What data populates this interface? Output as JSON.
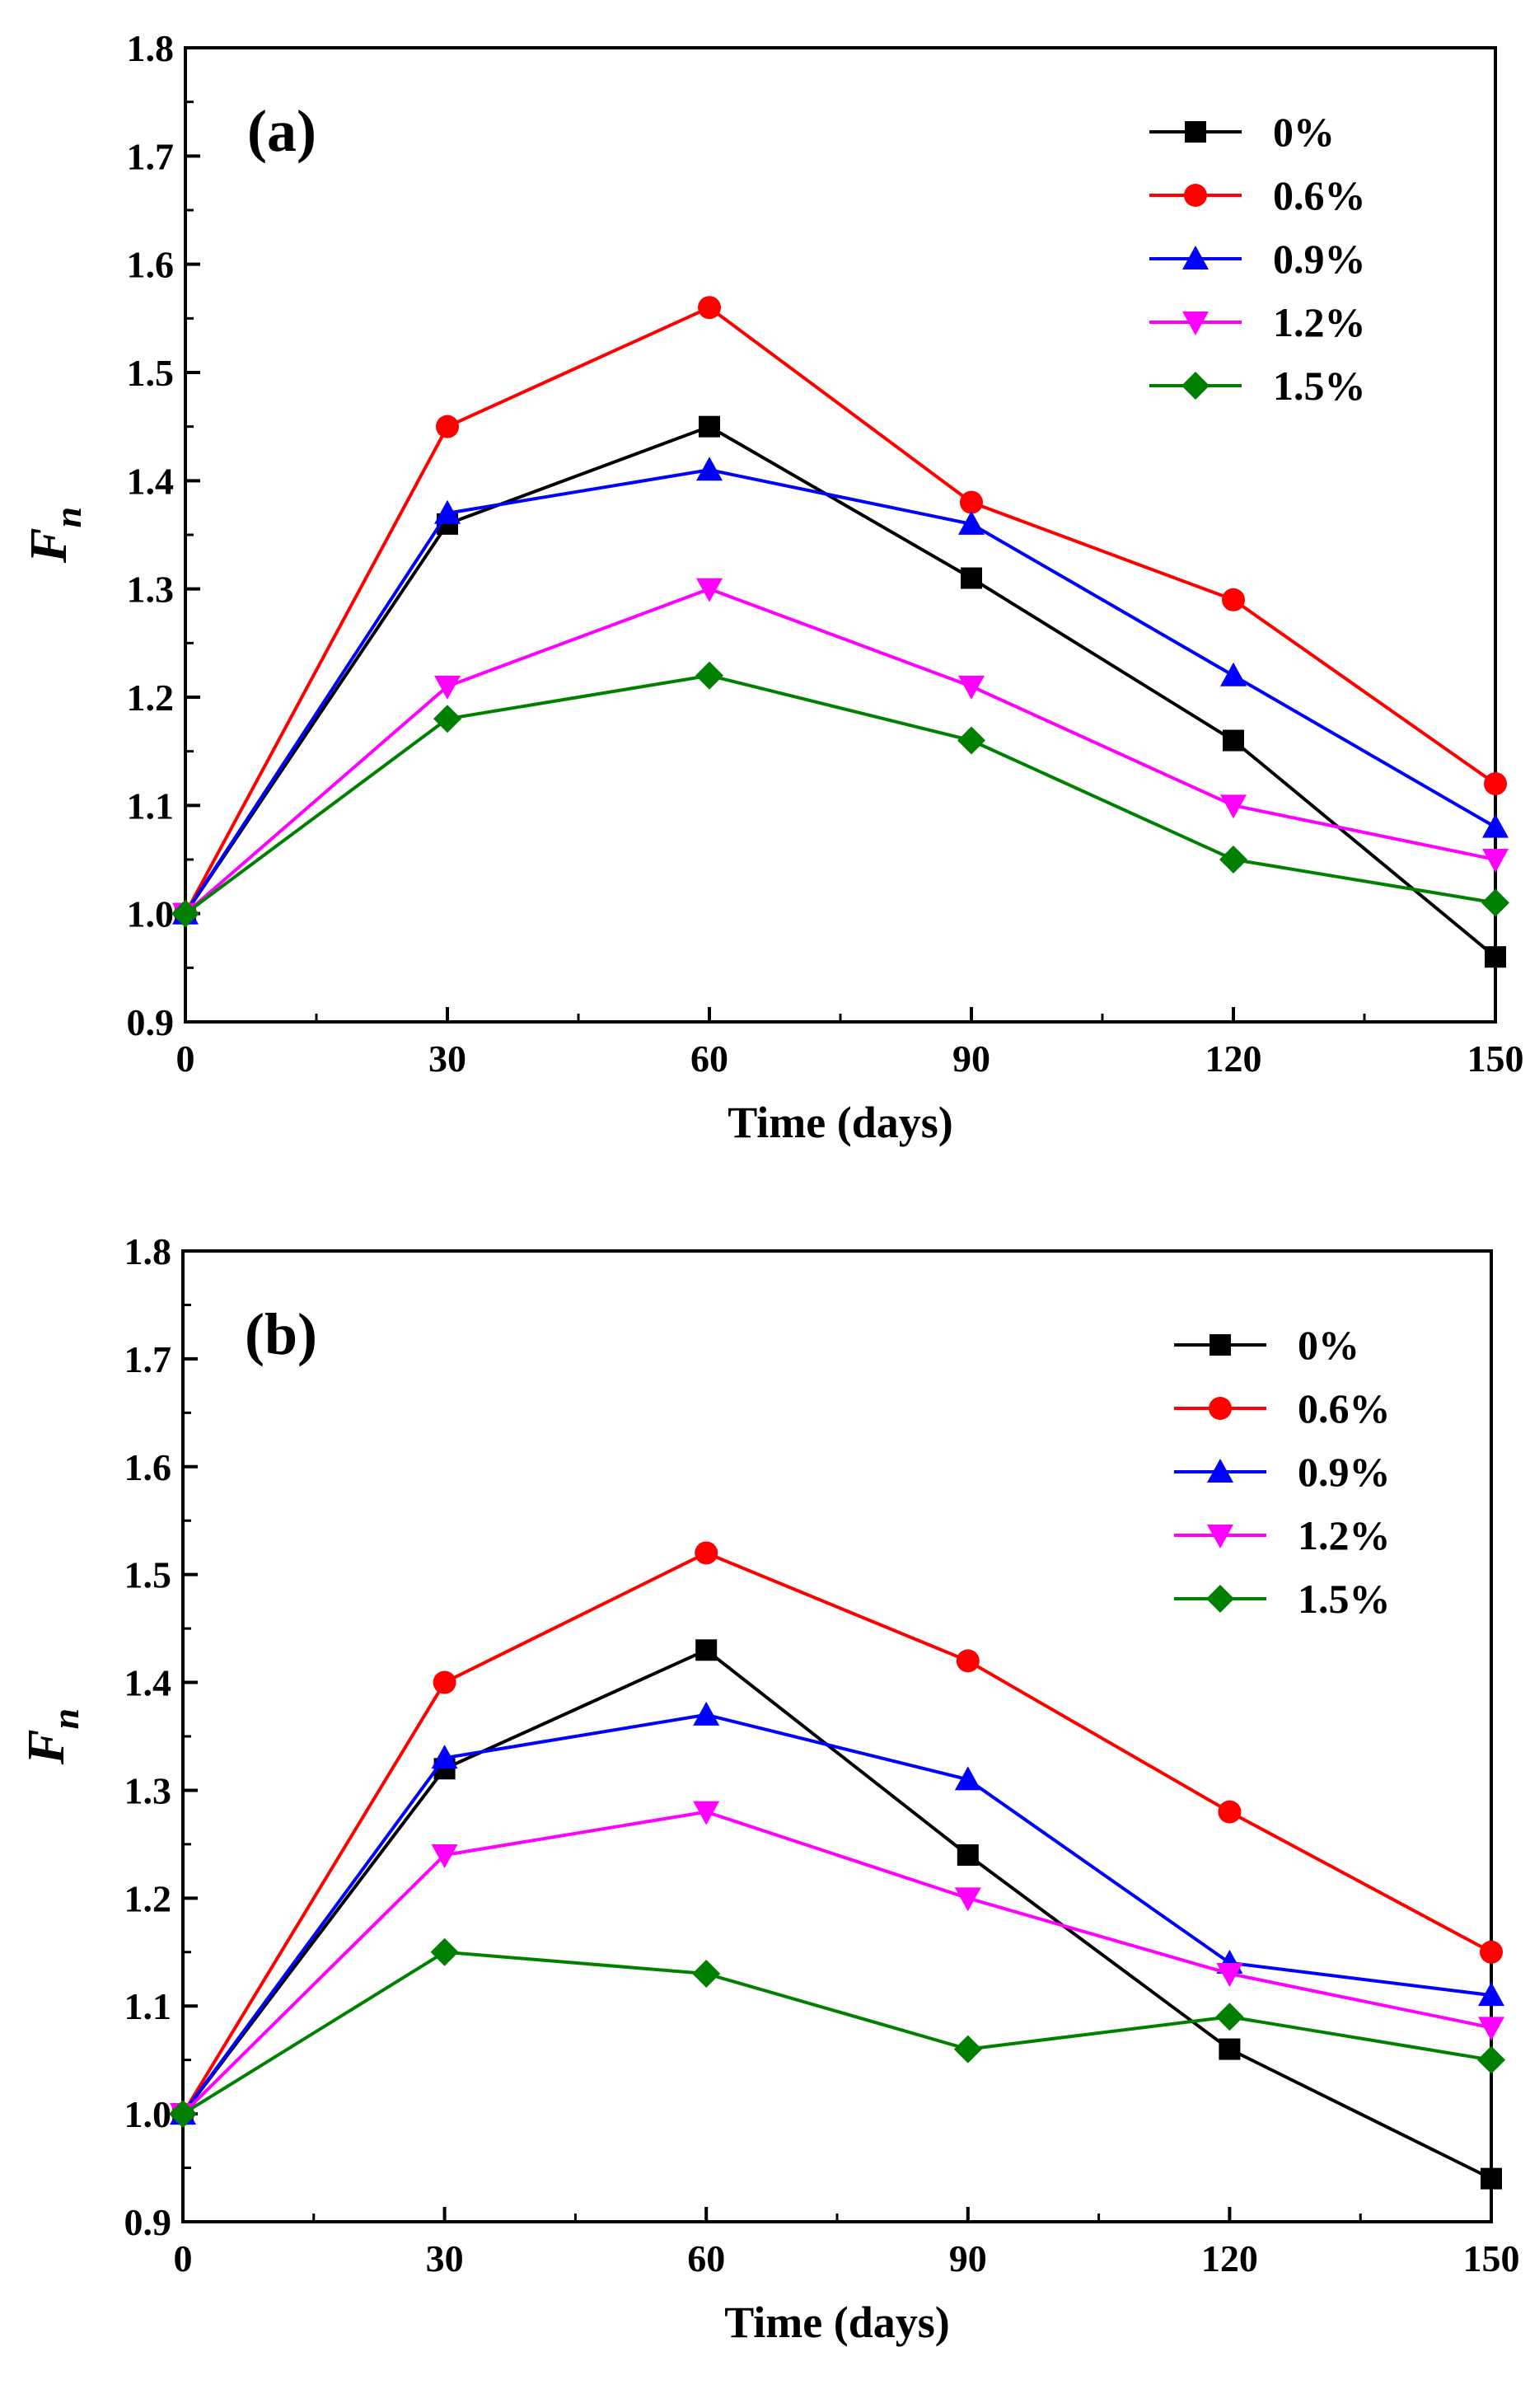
{
  "chart_data": [
    {
      "type": "line",
      "panel_label": "(a)",
      "xlabel": "Time (days)",
      "ylabel": {
        "main": "F",
        "sub": "n"
      },
      "x": [
        0,
        30,
        60,
        90,
        120,
        150
      ],
      "xticks": [
        "0",
        "30",
        "60",
        "90",
        "120",
        "150"
      ],
      "ylim": [
        0.9,
        1.8
      ],
      "yticks": [
        "0.9",
        "1.0",
        "1.1",
        "1.2",
        "1.3",
        "1.4",
        "1.5",
        "1.6",
        "1.7",
        "1.8"
      ],
      "legend_position": "top-right",
      "series": [
        {
          "name": "0%",
          "color": "#000000",
          "marker": "square",
          "values": [
            1.0,
            1.36,
            1.45,
            1.31,
            1.16,
            0.96
          ]
        },
        {
          "name": "0.6%",
          "color": "#ff0000",
          "marker": "circle",
          "values": [
            1.0,
            1.45,
            1.56,
            1.38,
            1.29,
            1.12
          ]
        },
        {
          "name": "0.9%",
          "color": "#0000ff",
          "marker": "triangle-up",
          "values": [
            1.0,
            1.37,
            1.41,
            1.36,
            1.22,
            1.08
          ]
        },
        {
          "name": "1.2%",
          "color": "#ff00ff",
          "marker": "triangle-down",
          "values": [
            1.0,
            1.21,
            1.3,
            1.21,
            1.1,
            1.05
          ]
        },
        {
          "name": "1.5%",
          "color": "#008000",
          "marker": "diamond",
          "values": [
            1.0,
            1.18,
            1.22,
            1.16,
            1.05,
            1.01
          ]
        }
      ]
    },
    {
      "type": "line",
      "panel_label": "(b)",
      "xlabel": "Time (days)",
      "ylabel": {
        "main": "F",
        "sub": "n"
      },
      "x": [
        0,
        30,
        60,
        90,
        120,
        150
      ],
      "xticks": [
        "0",
        "30",
        "60",
        "90",
        "120",
        "150"
      ],
      "ylim": [
        0.9,
        1.8
      ],
      "yticks": [
        "0.9",
        "1.0",
        "1.1",
        "1.2",
        "1.3",
        "1.4",
        "1.5",
        "1.6",
        "1.7",
        "1.8"
      ],
      "legend_position": "top-right",
      "series": [
        {
          "name": "0%",
          "color": "#000000",
          "marker": "square",
          "values": [
            1.0,
            1.32,
            1.43,
            1.24,
            1.06,
            0.94
          ]
        },
        {
          "name": "0.6%",
          "color": "#ff0000",
          "marker": "circle",
          "values": [
            1.0,
            1.4,
            1.52,
            1.42,
            1.28,
            1.15
          ]
        },
        {
          "name": "0.9%",
          "color": "#0000ff",
          "marker": "triangle-up",
          "values": [
            1.0,
            1.33,
            1.37,
            1.31,
            1.14,
            1.11
          ]
        },
        {
          "name": "1.2%",
          "color": "#ff00ff",
          "marker": "triangle-down",
          "values": [
            1.0,
            1.24,
            1.28,
            1.2,
            1.13,
            1.08
          ]
        },
        {
          "name": "1.5%",
          "color": "#008000",
          "marker": "diamond",
          "values": [
            1.0,
            1.15,
            1.13,
            1.06,
            1.09,
            1.05
          ]
        }
      ]
    }
  ]
}
